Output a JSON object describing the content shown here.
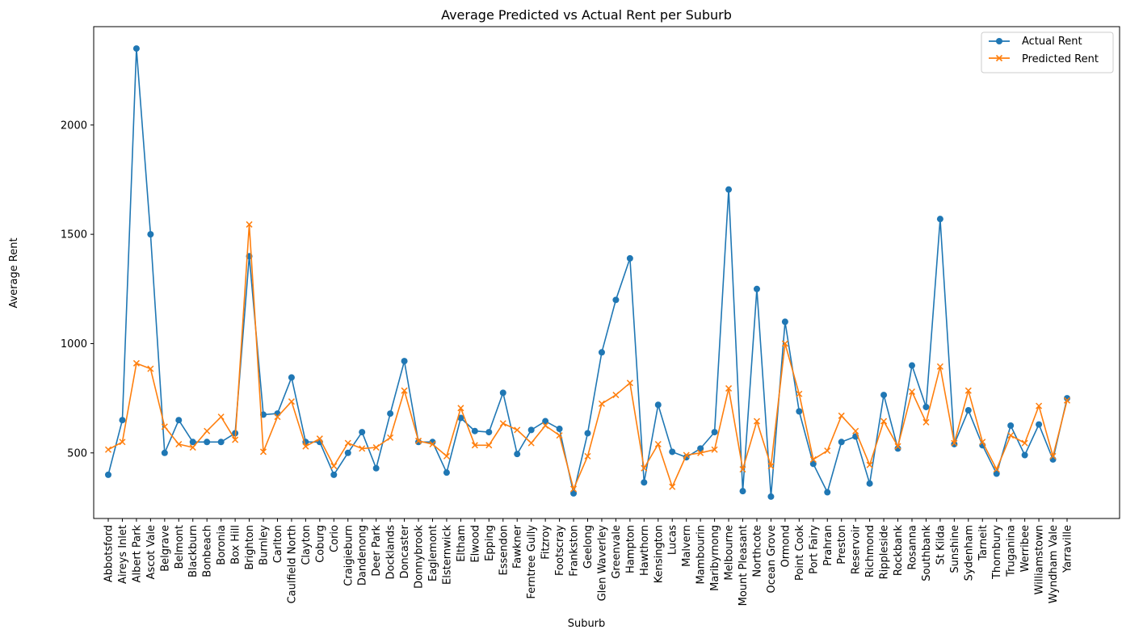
{
  "chart_data": {
    "type": "line",
    "title": "Average Predicted vs Actual Rent per Suburb",
    "xlabel": "Suburb",
    "ylabel": "Average Rent",
    "ylim": [
      200,
      2450
    ],
    "yticks": [
      500,
      1000,
      1500,
      2000
    ],
    "grid": false,
    "legend_position": "top-right",
    "categories": [
      "Abbotsford",
      "Aireys Inlet",
      "Albert Park",
      "Ascot Vale",
      "Belgrave",
      "Belmont",
      "Blackburn",
      "Bonbeach",
      "Boronia",
      "Box Hill",
      "Brighton",
      "Burnley",
      "Carlton",
      "Caulfield North",
      "Clayton",
      "Coburg",
      "Corio",
      "Craigieburn",
      "Dandenong",
      "Deer Park",
      "Docklands",
      "Doncaster",
      "Donnybrook",
      "Eaglemont",
      "Elsternwick",
      "Eltham",
      "Elwood",
      "Epping",
      "Essendon",
      "Fawkner",
      "Ferntree Gully",
      "Fitzroy",
      "Footscray",
      "Frankston",
      "Geelong",
      "Glen Waverley",
      "Greenvale",
      "Hampton",
      "Hawthorn",
      "Kensington",
      "Lucas",
      "Malvern",
      "Mambourin",
      "Maribyrnong",
      "Melbourne",
      "Mount Pleasant",
      "Northcote",
      "Ocean Grove",
      "Ormond",
      "Point Cook",
      "Port Fairy",
      "Prahran",
      "Preston",
      "Reservoir",
      "Richmond",
      "Rippleside",
      "Rockbank",
      "Rosanna",
      "Southbank",
      "St Kilda",
      "Sunshine",
      "Sydenham",
      "Tarneit",
      "Thornbury",
      "Truganina",
      "Werribee",
      "Williamstown",
      "Wyndham Vale",
      "Yarraville"
    ],
    "series": [
      {
        "name": "Actual Rent",
        "color": "#1f77b4",
        "marker": "circle",
        "values": [
          400,
          650,
          2350,
          1500,
          500,
          650,
          550,
          550,
          550,
          590,
          1400,
          675,
          680,
          845,
          550,
          550,
          400,
          500,
          595,
          430,
          680,
          920,
          550,
          550,
          410,
          660,
          600,
          595,
          775,
          495,
          605,
          645,
          610,
          315,
          590,
          960,
          1200,
          1390,
          365,
          720,
          505,
          480,
          520,
          595,
          1705,
          325,
          1250,
          300,
          1100,
          690,
          450,
          320,
          550,
          575,
          360,
          765,
          520,
          900,
          710,
          1570,
          540,
          695,
          535,
          405,
          625,
          490,
          630,
          470,
          750
        ]
      },
      {
        "name": "Predicted Rent",
        "color": "#ff7f0e",
        "marker": "x",
        "values": [
          515,
          550,
          910,
          885,
          620,
          540,
          525,
          600,
          665,
          560,
          1545,
          505,
          665,
          735,
          530,
          565,
          440,
          545,
          520,
          525,
          570,
          785,
          555,
          540,
          485,
          705,
          535,
          535,
          635,
          605,
          545,
          625,
          580,
          335,
          485,
          725,
          765,
          820,
          430,
          540,
          345,
          490,
          500,
          515,
          795,
          425,
          645,
          440,
          1000,
          770,
          470,
          510,
          670,
          600,
          445,
          645,
          530,
          780,
          640,
          895,
          545,
          785,
          550,
          425,
          580,
          545,
          715,
          485,
          740
        ]
      }
    ]
  }
}
